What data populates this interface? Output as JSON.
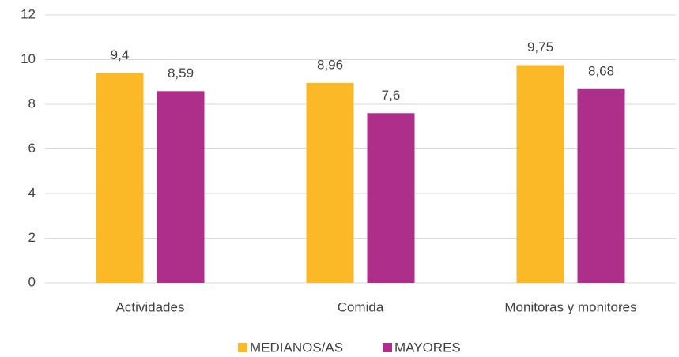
{
  "chart_data": {
    "type": "bar",
    "categories": [
      "Actividades",
      "Comida",
      "Monitoras y monitores"
    ],
    "series": [
      {
        "name": "MEDIANOS/AS",
        "color": "#fbb927",
        "values": [
          9.4,
          8.96,
          9.75
        ],
        "value_labels": [
          "9,4",
          "8,96",
          "9,75"
        ]
      },
      {
        "name": "MAYORES",
        "color": "#ad2f89",
        "values": [
          8.59,
          7.6,
          8.68
        ],
        "value_labels": [
          "8,59",
          "7,6",
          "8,68"
        ]
      }
    ],
    "ylim": [
      0,
      12
    ],
    "yticks": [
      0,
      2,
      4,
      6,
      8,
      10,
      12
    ],
    "grid": true,
    "legend": "bottom"
  }
}
